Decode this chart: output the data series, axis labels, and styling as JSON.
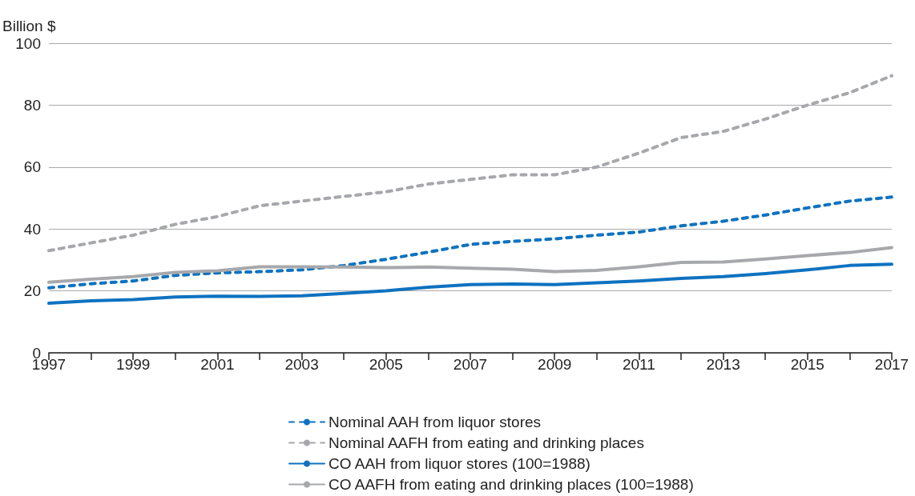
{
  "chart_data": {
    "type": "line",
    "ylabel": "Billion $",
    "x": [
      1997,
      1998,
      1999,
      2000,
      2001,
      2002,
      2003,
      2004,
      2005,
      2006,
      2007,
      2008,
      2009,
      2010,
      2011,
      2012,
      2013,
      2014,
      2015,
      2016,
      2017
    ],
    "series": [
      {
        "name": "Nominal AAH from liquor stores",
        "color": "#0e72c0",
        "line_style": "dashed",
        "values": [
          21,
          22.3,
          23.2,
          25,
          25.8,
          26.2,
          26.8,
          28.2,
          30.2,
          32.5,
          35,
          36,
          36.8,
          38,
          39,
          41,
          42.5,
          44.5,
          46.8,
          49,
          50.3
        ]
      },
      {
        "name": "Nominal AAFH from eating and drinking places",
        "color": "#a7a8ab",
        "line_style": "dashed",
        "values": [
          33,
          35.5,
          38,
          41.5,
          44,
          47.5,
          49,
          50.5,
          52,
          54.5,
          56,
          57.5,
          57.5,
          60,
          64.5,
          69.5,
          71.5,
          75.5,
          80,
          84,
          89.5
        ]
      },
      {
        "name": "CO AAH from liquor stores (100=1988)",
        "color": "#0e72c0",
        "line_style": "solid",
        "values": [
          16,
          16.8,
          17.2,
          18,
          18.3,
          18.2,
          18.4,
          19.2,
          20,
          21.2,
          22,
          22.2,
          22,
          22.6,
          23.2,
          24,
          24.6,
          25.6,
          26.8,
          28.2,
          28.6
        ]
      },
      {
        "name": "CO AAFH from eating and drinking places (100=1988)",
        "color": "#a7a8ab",
        "line_style": "solid",
        "values": [
          22.8,
          23.8,
          24.6,
          26,
          26.5,
          27.8,
          27.8,
          27.7,
          27.5,
          27.7,
          27.3,
          27,
          26.2,
          26.6,
          27.8,
          29.2,
          29.3,
          30.3,
          31.4,
          32.4,
          34
        ]
      }
    ],
    "xlim": [
      1997,
      2017
    ],
    "xticks": [
      1997,
      {
        "value": 1998,
        "label": null
      },
      1999,
      {
        "value": 2000,
        "label": null
      },
      2001,
      {
        "value": 2002,
        "label": null
      },
      2003,
      {
        "value": 2004,
        "label": null
      },
      2005,
      {
        "value": 2006,
        "label": null
      },
      2007,
      {
        "value": 2008,
        "label": null
      },
      2009,
      {
        "value": 2010,
        "label": null
      },
      2011,
      {
        "value": 2012,
        "label": null
      },
      2013,
      {
        "value": 2014,
        "label": null
      },
      2015,
      {
        "value": 2016,
        "label": null
      },
      2017
    ],
    "ylim": [
      0,
      100
    ],
    "yticks": [
      0,
      20,
      40,
      60,
      80,
      100
    ],
    "grid": "y",
    "legend": "bottom",
    "marker": "none"
  }
}
